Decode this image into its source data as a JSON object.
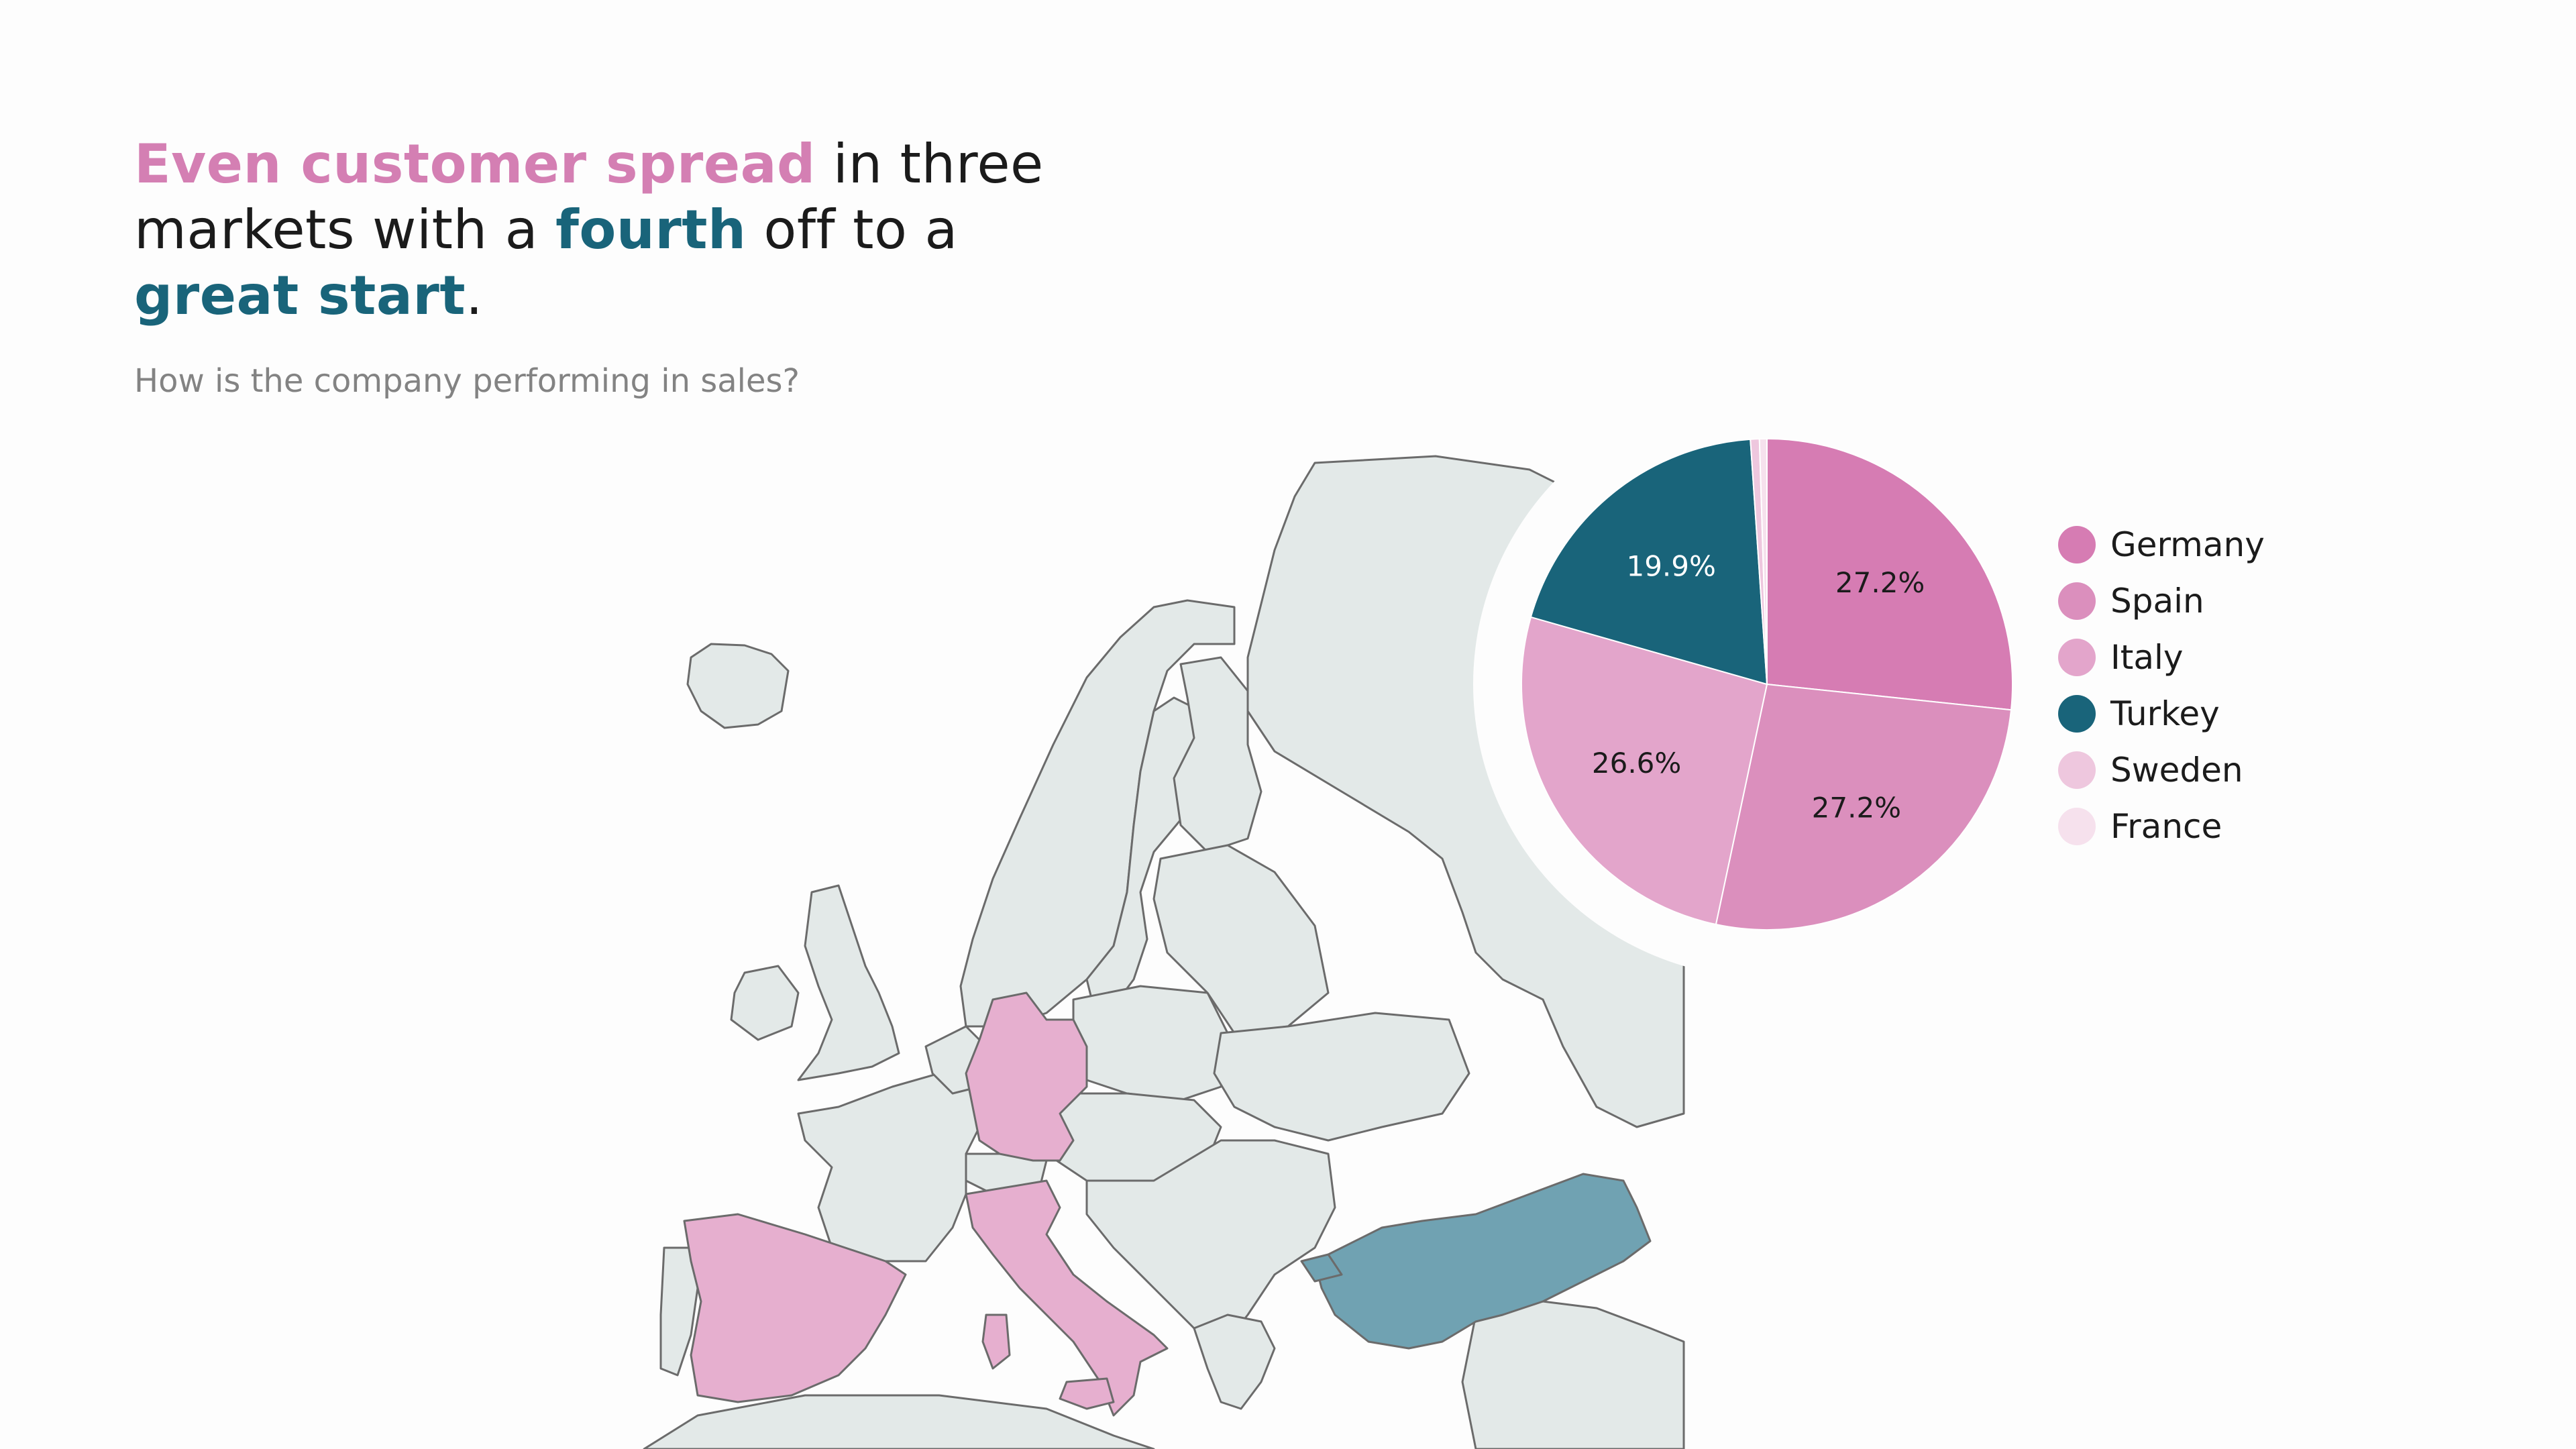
{
  "title": {
    "part1": "Even customer spread",
    "part2": " in three markets with a ",
    "part3": "fourth",
    "part4": " off to a ",
    "part5": "great start",
    "part6": "."
  },
  "subtitle": "How is the company performing in sales?",
  "colors": {
    "pink_accent": "#d47fb3",
    "teal_accent": "#19647a",
    "map_land": "#e3e9e8",
    "map_border": "#6b6b6b",
    "map_highlight_pink": "#e6afcf",
    "map_highlight_teal": "#70a2b2"
  },
  "map": {
    "highlighted_countries": [
      {
        "name": "Germany",
        "color": "#e6afcf"
      },
      {
        "name": "Spain",
        "color": "#e6afcf"
      },
      {
        "name": "Italy",
        "color": "#e6afcf"
      },
      {
        "name": "Turkey",
        "color": "#70a2b2"
      }
    ]
  },
  "chart_data": {
    "type": "pie",
    "series": [
      {
        "name": "Germany",
        "value": 27.2,
        "label": "27.2%",
        "color": "#d67cb3"
      },
      {
        "name": "Spain",
        "value": 27.2,
        "label": "27.2%",
        "color": "#db8fbd"
      },
      {
        "name": "Italy",
        "value": 26.6,
        "label": "26.6%",
        "color": "#e3a5cb"
      },
      {
        "name": "Turkey",
        "value": 19.9,
        "label": "19.9%",
        "color": "#19647a"
      },
      {
        "name": "Sweden",
        "value": 0.6,
        "label": "",
        "color": "#eec7de"
      },
      {
        "name": "France",
        "value": 0.5,
        "label": "",
        "color": "#f6e1ed"
      }
    ],
    "legend_position": "right"
  }
}
